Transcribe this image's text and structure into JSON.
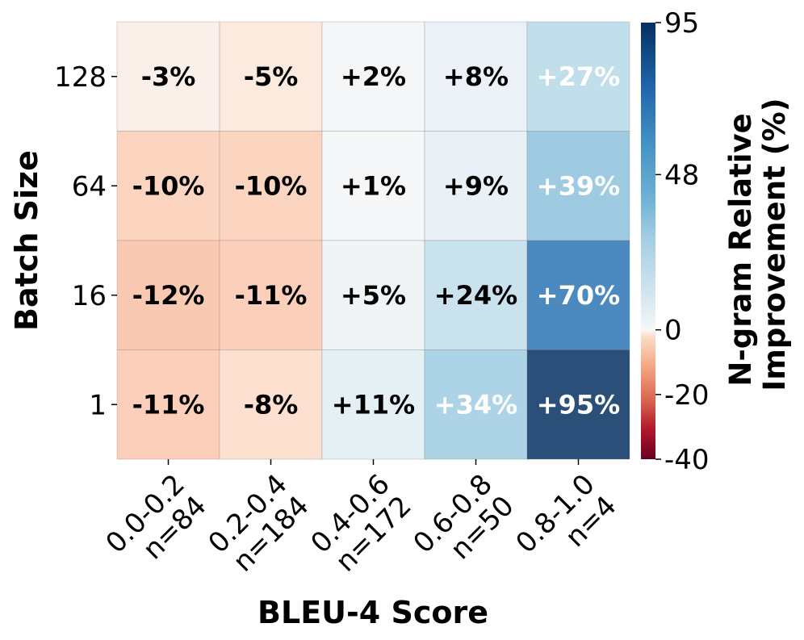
{
  "chart_data": {
    "type": "heatmap",
    "xlabel": "BLEU-4 Score",
    "ylabel": "Batch Size",
    "x_categories": [
      [
        "0.0-0.2",
        "n=84"
      ],
      [
        "0.2-0.4",
        "n=184"
      ],
      [
        "0.4-0.6",
        "n=172"
      ],
      [
        "0.6-0.8",
        "n=50"
      ],
      [
        "0.8-1.0",
        "n=4"
      ]
    ],
    "y_categories": [
      "128",
      "64",
      "16",
      "1"
    ],
    "values": [
      [
        -3,
        -5,
        2,
        8,
        27
      ],
      [
        -10,
        -10,
        1,
        9,
        39
      ],
      [
        -12,
        -11,
        5,
        24,
        70
      ],
      [
        -11,
        -8,
        11,
        34,
        95
      ]
    ],
    "cell_labels": [
      [
        "-3%",
        "-5%",
        "+2%",
        "+8%",
        "+27%"
      ],
      [
        "-10%",
        "-10%",
        "+1%",
        "+9%",
        "+39%"
      ],
      [
        "-12%",
        "-11%",
        "+5%",
        "+24%",
        "+70%"
      ],
      [
        "-11%",
        "-8%",
        "+11%",
        "+34%",
        "+95%"
      ]
    ],
    "colorbar": {
      "title_lines": [
        "N-gram Relative",
        "Improvement (%)"
      ],
      "ticks": [
        "95",
        "48",
        "0",
        "-20",
        "-40"
      ],
      "tick_values": [
        95,
        48,
        0,
        -20,
        -40
      ],
      "vmin": -40,
      "vcenter": 0,
      "vmax": 95,
      "colormap": "RdBu"
    }
  }
}
